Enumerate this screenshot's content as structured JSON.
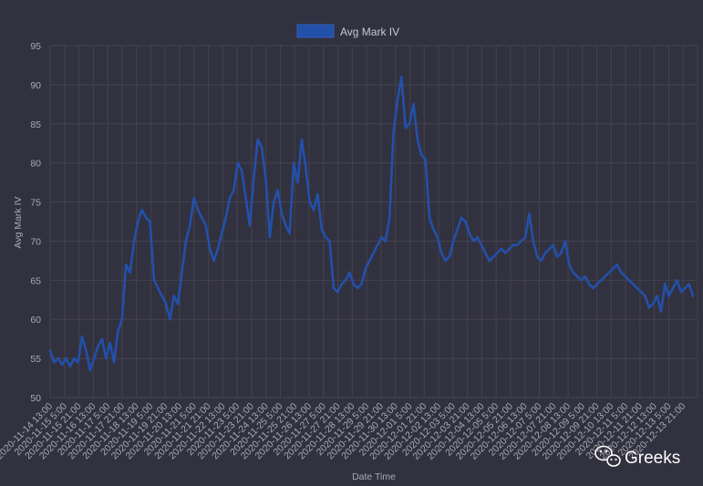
{
  "chart_data": {
    "type": "line",
    "title": "",
    "xlabel": "Date Time",
    "ylabel": "Avg Mark IV",
    "ylim": [
      50,
      95
    ],
    "yticks": [
      50,
      55,
      60,
      65,
      70,
      75,
      80,
      85,
      90,
      95
    ],
    "grid": true,
    "legend_position": "top",
    "colors": {
      "background": "#323140",
      "series": "#2350a8",
      "grid": "#44434f",
      "text": "#a9a9b3"
    },
    "x_tick_labels": [
      "2020-11-14 13:00",
      "2020-11-15 5:00",
      "2020-11-15 21:00",
      "2020-11-16 13:00",
      "2020-11-17 5:00",
      "2020-11-17 21:00",
      "2020-11-18 13:00",
      "2020-11-19 5:00",
      "2020-11-19 21:00",
      "2020-11-20 13:00",
      "2020-11-21 5:00",
      "2020-11-21 21:00",
      "2020-11-22 13:00",
      "2020-11-23 5:00",
      "2020-11-23 21:00",
      "2020-11-24 13:00",
      "2020-11-25 5:00",
      "2020-11-25 21:00",
      "2020-11-26 13:00",
      "2020-11-27 5:00",
      "2020-11-27 21:00",
      "2020-11-28 13:00",
      "2020-11-29 5:00",
      "2020-11-29 21:00",
      "2020-11-30 13:00",
      "2020-12-01 5:00",
      "2020-12-01 21:00",
      "2020-12-02 13:00",
      "2020-12-03 5:00",
      "2020-12-03 21:00",
      "2020-12-04 13:00",
      "2020-12-05 5:00",
      "2020-12-05 21:00",
      "2020-12-06 13:00",
      "2020-12-07 5:00",
      "2020-12-07 21:00",
      "2020-12-08 13:00",
      "2020-12-09 5:00",
      "2020-12-09 21:00",
      "2020-12-10 13:00",
      "2020-12-11 5:00",
      "2020-12-11 21:00",
      "2020-12-12 13:00",
      "2020-12-13 5:00",
      "2020-12-13 21:00"
    ],
    "series": [
      {
        "name": "Avg Mark IV",
        "values": [
          56.0,
          54.5,
          55.0,
          54.2,
          55.0,
          54.0,
          55.0,
          54.5,
          57.8,
          56.0,
          53.5,
          55.0,
          56.5,
          57.5,
          55.0,
          57.0,
          54.5,
          58.5,
          60.0,
          67.0,
          66.0,
          70.0,
          72.5,
          74.0,
          73.0,
          72.5,
          65.0,
          64.0,
          63.0,
          62.0,
          60.0,
          63.0,
          62.0,
          66.0,
          70.0,
          72.0,
          75.5,
          74.0,
          73.0,
          72.0,
          69.0,
          67.5,
          69.0,
          71.0,
          73.0,
          75.5,
          76.5,
          80.0,
          79.0,
          75.5,
          72.0,
          78.0,
          83.0,
          82.0,
          78.0,
          70.5,
          75.0,
          76.5,
          73.5,
          72.0,
          71.0,
          80.0,
          77.5,
          83.0,
          79.5,
          75.0,
          74.0,
          76.0,
          71.5,
          70.5,
          70.0,
          64.0,
          63.5,
          64.5,
          65.0,
          66.0,
          64.5,
          64.0,
          64.5,
          66.5,
          67.5,
          68.5,
          69.5,
          70.5,
          70.0,
          73.0,
          84.0,
          88.0,
          91.0,
          84.5,
          85.0,
          87.5,
          83.0,
          81.0,
          80.5,
          73.0,
          71.5,
          70.5,
          68.5,
          67.5,
          68.0,
          70.0,
          71.5,
          73.0,
          72.5,
          71.0,
          70.0,
          70.5,
          69.5,
          68.5,
          67.5,
          68.0,
          68.5,
          69.0,
          68.5,
          69.0,
          69.5,
          69.5,
          70.0,
          70.5,
          73.5,
          70.0,
          68.0,
          67.5,
          68.5,
          69.0,
          69.5,
          68.0,
          68.5,
          70.0,
          67.0,
          66.0,
          65.5,
          65.0,
          65.5,
          64.5,
          64.0,
          64.5,
          65.0,
          65.5,
          66.0,
          66.5,
          67.0,
          66.0,
          65.5,
          65.0,
          64.5,
          64.0,
          63.5,
          63.0,
          61.5,
          62.0,
          63.0,
          61.0,
          64.5,
          63.0,
          64.0,
          65.0,
          63.5,
          64.0,
          64.5,
          63.0
        ]
      }
    ]
  },
  "legend": {
    "label": "Avg Mark IV",
    "swatch_color": "#2350a8"
  },
  "watermark": {
    "text": "Greeks",
    "icon": "wechat-icon"
  }
}
